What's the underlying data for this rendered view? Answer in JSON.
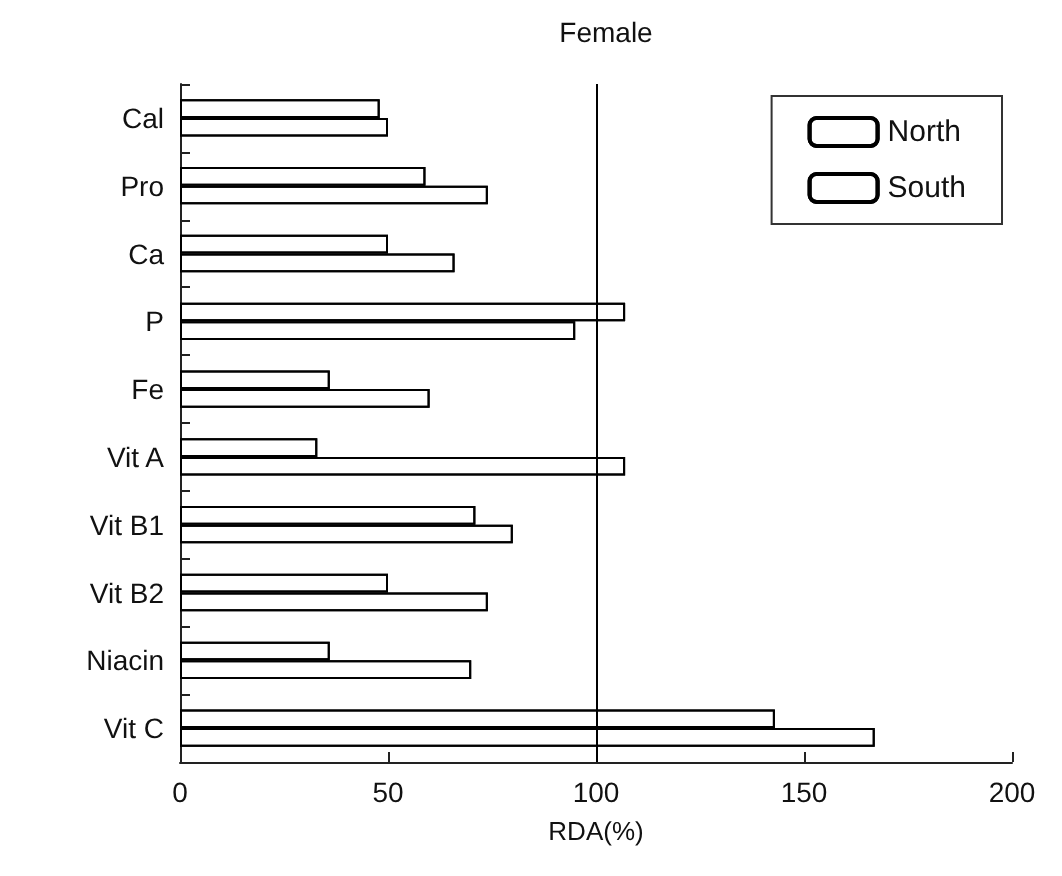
{
  "chart_data": {
    "type": "bar",
    "orientation": "horizontal",
    "title": "Female",
    "xlabel": "RDA(%)",
    "categories": [
      "Cal",
      "Pro",
      "Ca",
      "P",
      "Fe",
      "Vit A",
      "Vit B1",
      "Vit B2",
      "Niacin",
      "Vit C"
    ],
    "series": [
      {
        "name": "North",
        "color": "#ffffff",
        "values": [
          48,
          59,
          50,
          107,
          36,
          33,
          71,
          50,
          36,
          143
        ]
      },
      {
        "name": "South",
        "color": "#ffffff",
        "values": [
          50,
          74,
          66,
          95,
          60,
          107,
          80,
          74,
          70,
          167
        ]
      }
    ],
    "xlim": [
      0,
      200
    ],
    "xticks": [
      0,
      50,
      100,
      150,
      200
    ],
    "ref_lines": [
      {
        "axis": "x",
        "value": 100,
        "color": "#000000",
        "line_style": "solid"
      }
    ],
    "legend": "top right",
    "grid": false
  }
}
